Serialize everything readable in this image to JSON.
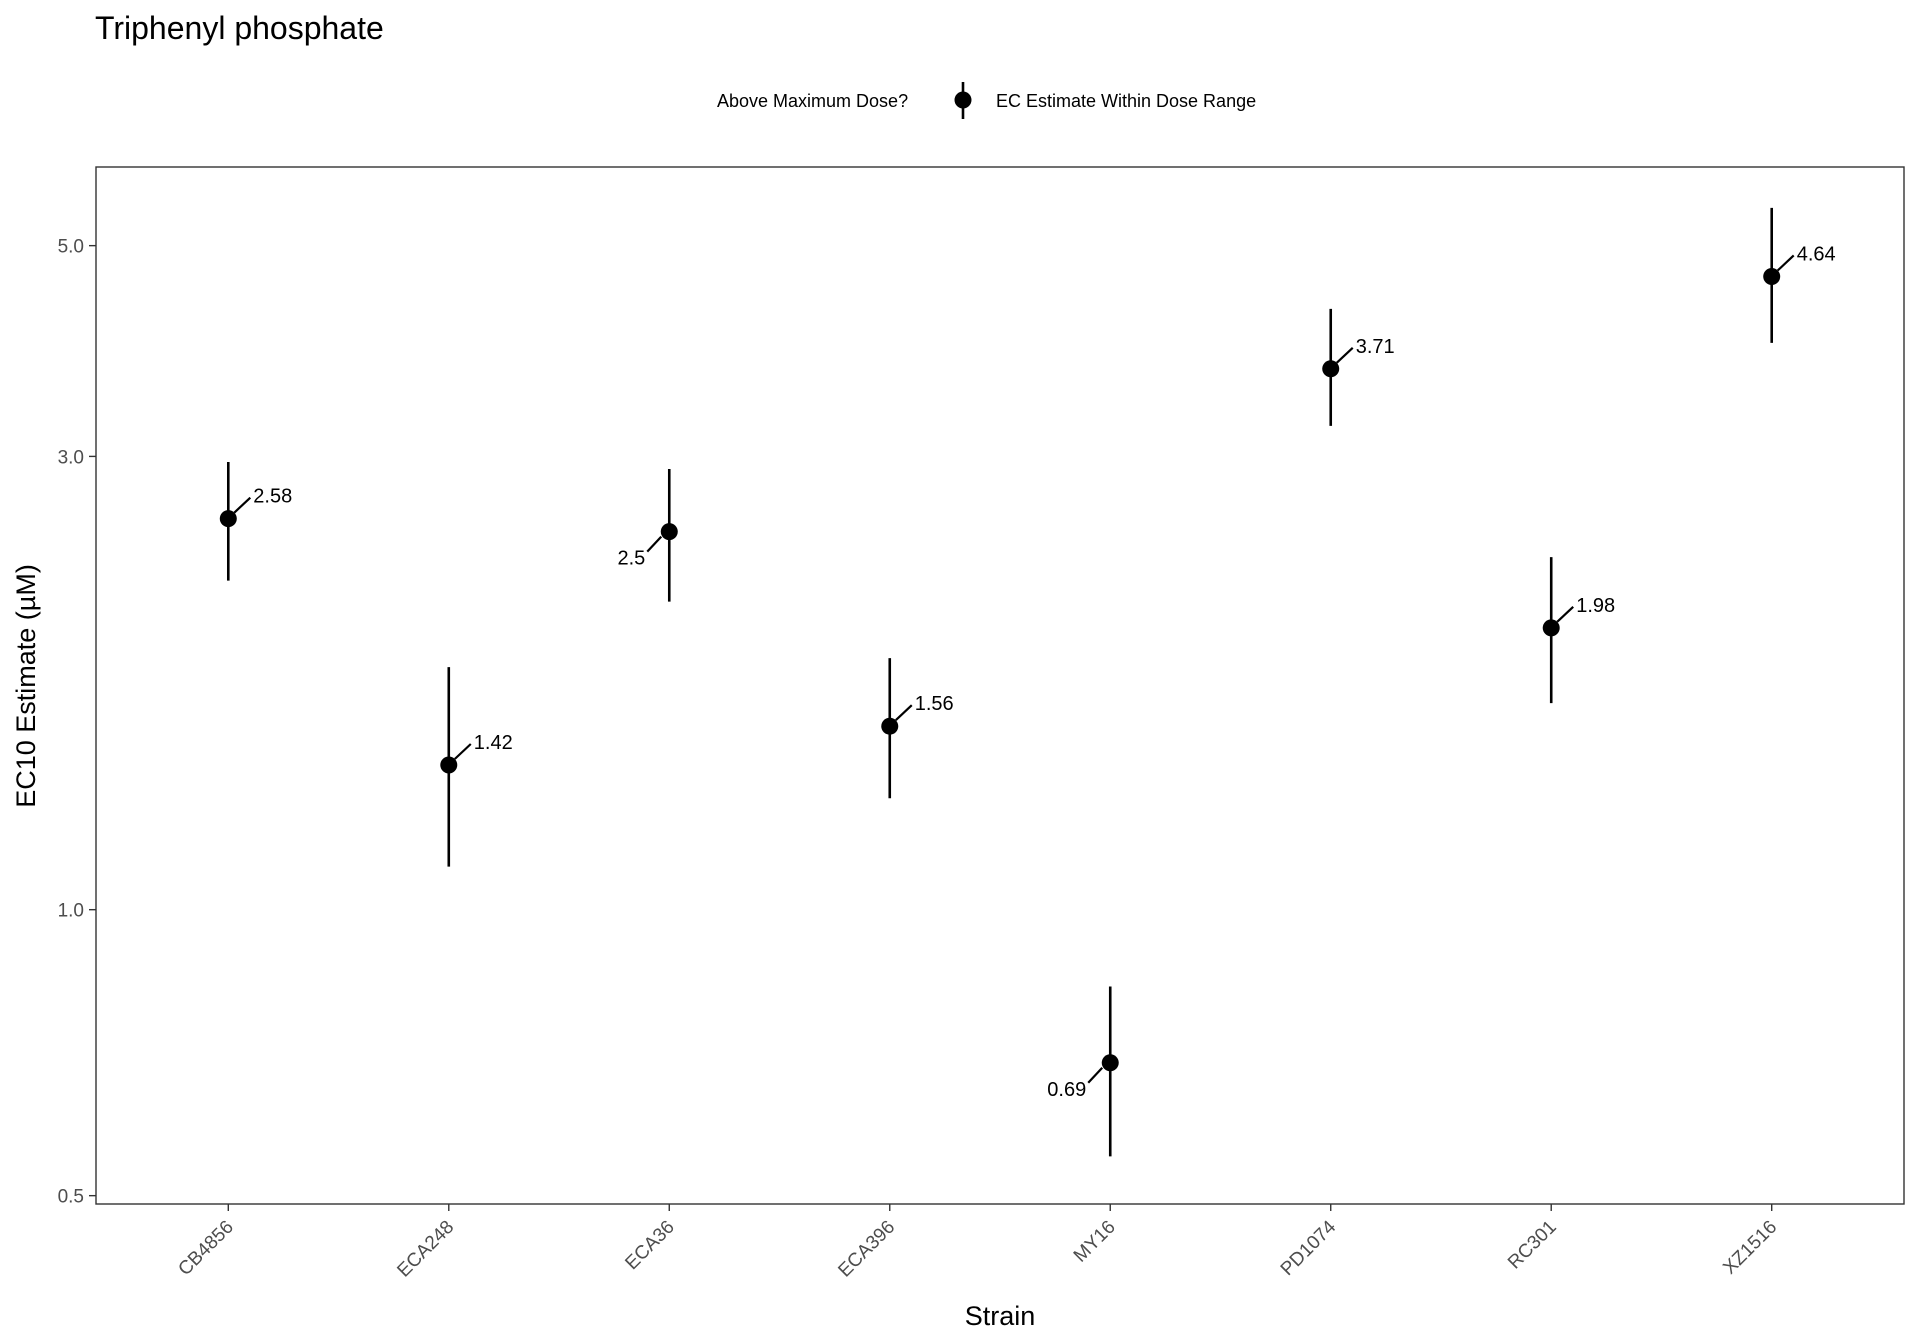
{
  "chart_data": {
    "type": "scatter",
    "title": "Triphenyl phosphate",
    "xlabel": "Strain",
    "ylabel": "EC10 Estimate (µM)",
    "yscale": "log",
    "ylim": [
      0.49,
      6.05
    ],
    "yticks": [
      0.5,
      1.0,
      3.0,
      5.0
    ],
    "ytick_labels": [
      "0.5",
      "1.0",
      "3.0",
      "5.0"
    ],
    "grid": false,
    "legend": {
      "position": "top",
      "title": "Above Maximum Dose?",
      "entries": [
        "EC Estimate Within Dose Range"
      ]
    },
    "categories": [
      "CB4856",
      "ECA248",
      "ECA36",
      "ECA396",
      "MY16",
      "PD1074",
      "RC301",
      "XZ1516"
    ],
    "series": [
      {
        "name": "EC Estimate Within Dose Range",
        "values": [
          2.58,
          1.42,
          2.5,
          1.56,
          0.69,
          3.71,
          1.98,
          4.64
        ],
        "lower": [
          2.22,
          1.11,
          2.11,
          1.31,
          0.55,
          3.23,
          1.65,
          3.95
        ],
        "upper": [
          2.96,
          1.8,
          2.91,
          1.84,
          0.83,
          4.29,
          2.35,
          5.48
        ],
        "labels": [
          "2.58",
          "1.42",
          "2.5",
          "1.56",
          "0.69",
          "3.71",
          "1.98",
          "4.64"
        ],
        "label_side": [
          "right",
          "right",
          "left",
          "right",
          "left",
          "right",
          "right",
          "right"
        ]
      }
    ]
  }
}
